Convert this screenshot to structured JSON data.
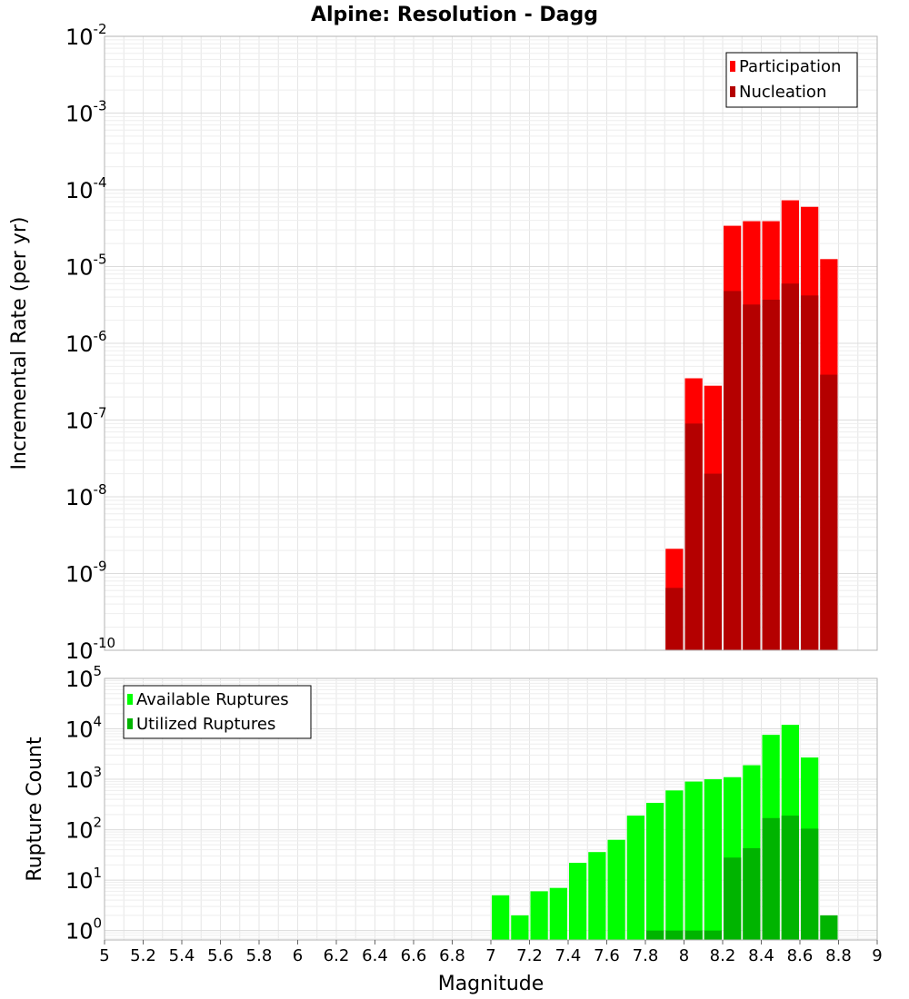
{
  "title": "Alpine: Resolution - Dagg",
  "colors": {
    "participation": "#ff0000",
    "nucleation": "#b40000",
    "available": "#00ff00",
    "utilized": "#00b400",
    "grid": "#e6e6e6",
    "frame": "#b3b3b3"
  },
  "chart_data": [
    {
      "type": "bar",
      "name": "rates",
      "ylabel": "Incremental Rate (per yr)",
      "yscale": "log",
      "ylim": [
        1e-10,
        0.01
      ],
      "xlim": [
        5,
        9
      ],
      "y_tick_base": "10",
      "y_tick_exponents": [
        "-10",
        "-9",
        "-8",
        "-7",
        "-6",
        "-5",
        "-4",
        "-3",
        "-2"
      ],
      "legend": {
        "position": "top-right"
      },
      "grid": true,
      "series": [
        {
          "name": "Participation",
          "color": "#ff0000",
          "x": [
            7.95,
            8.05,
            8.15,
            8.25,
            8.35,
            8.45,
            8.55,
            8.65,
            8.75
          ],
          "values": [
            2.1e-09,
            3.5e-07,
            2.8e-07,
            3.4e-05,
            3.9e-05,
            3.9e-05,
            7.3e-05,
            6e-05,
            1.25e-05
          ]
        },
        {
          "name": "Nucleation",
          "color": "#b40000",
          "x": [
            7.95,
            8.05,
            8.15,
            8.25,
            8.35,
            8.45,
            8.55,
            8.65,
            8.75
          ],
          "values": [
            6.5e-10,
            9e-08,
            2e-08,
            4.8e-06,
            3.2e-06,
            3.7e-06,
            6e-06,
            4.2e-06,
            3.9e-07
          ]
        }
      ]
    },
    {
      "type": "bar",
      "name": "counts",
      "xlabel": "Magnitude",
      "ylabel": "Rupture Count",
      "yscale": "log",
      "ylim": [
        0.65,
        100000
      ],
      "xlim": [
        5,
        9
      ],
      "y_tick_base": "10",
      "y_tick_exponents": [
        "0",
        "1",
        "2",
        "3",
        "4",
        "5"
      ],
      "x_ticks": [
        "5",
        "5.2",
        "5.4",
        "5.6",
        "5.8",
        "6",
        "6.2",
        "6.4",
        "6.6",
        "6.8",
        "7",
        "7.2",
        "7.4",
        "7.6",
        "7.8",
        "8",
        "8.2",
        "8.4",
        "8.6",
        "8.8",
        "9"
      ],
      "legend": {
        "position": "top-left"
      },
      "grid": true,
      "series": [
        {
          "name": "Available Ruptures",
          "color": "#00ff00",
          "x": [
            7.05,
            7.15,
            7.25,
            7.35,
            7.45,
            7.55,
            7.65,
            7.75,
            7.85,
            7.95,
            8.05,
            8.15,
            8.25,
            8.35,
            8.45,
            8.55,
            8.65
          ],
          "values": [
            5,
            2,
            6,
            7,
            22,
            36,
            63,
            190,
            340,
            600,
            900,
            1000,
            1100,
            1900,
            7600,
            12000,
            2700
          ]
        },
        {
          "name": "Utilized Ruptures",
          "color": "#00b400",
          "x": [
            7.85,
            7.95,
            8.05,
            8.15,
            8.25,
            8.35,
            8.45,
            8.55,
            8.65,
            8.75
          ],
          "values": [
            1,
            1,
            1,
            1,
            28,
            43,
            170,
            190,
            105,
            2
          ]
        }
      ]
    }
  ]
}
